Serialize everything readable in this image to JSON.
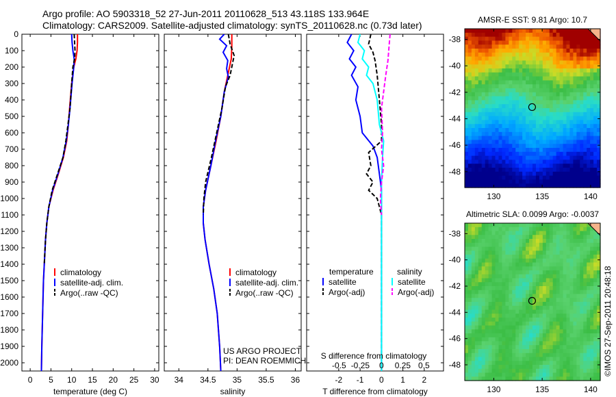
{
  "header": {
    "line1": "Argo profile: AO 5903318_52 27-Jun-2011 20110628_513 43.118S 133.964E",
    "line2": "Climatology: CARS2009. Satellite-adjusted climatology: synTS_20110628.nc (0.73d later)"
  },
  "depth_ticks": [
    0,
    100,
    200,
    300,
    400,
    500,
    600,
    700,
    800,
    900,
    1000,
    1100,
    1200,
    1300,
    1400,
    1500,
    1600,
    1700,
    1800,
    1900,
    2000
  ],
  "credits": {
    "project": "US ARGO PROJECT",
    "pi": "PI: DEAN ROEMMICH"
  },
  "timestamp": "©IMOS 27-Sep-2011 20:48:18",
  "colors": {
    "climatology": "#ff0000",
    "satellite": "#0000ff",
    "argo": "#000000",
    "sat_salinity": "#00ffff",
    "argo_salinity": "#ff00ff"
  },
  "chart_data": [
    {
      "type": "line",
      "xlabel": "temperature (deg C)",
      "ylabel": "",
      "xlim": [
        -2,
        31
      ],
      "ylim": [
        2050,
        0
      ],
      "xticks": [
        0,
        5,
        10,
        15,
        20,
        25,
        30
      ],
      "legend": {
        "position": "bottom-right",
        "entries": [
          "climatology",
          "satellite-adj. clim.",
          "Argo(..raw -QC)"
        ]
      },
      "series": [
        {
          "name": "climatology",
          "color": "#ff0000",
          "points": [
            [
              11.4,
              0
            ],
            [
              11.4,
              50
            ],
            [
              11.3,
              100
            ],
            [
              11.0,
              150
            ],
            [
              10.5,
              200
            ],
            [
              10.0,
              300
            ],
            [
              9.5,
              450
            ],
            [
              9.2,
              550
            ],
            [
              8.8,
              650
            ],
            [
              8.0,
              750
            ],
            [
              6.8,
              850
            ],
            [
              5.5,
              950
            ],
            [
              4.5,
              1050
            ],
            [
              4.0,
              1150
            ],
            [
              3.7,
              1250
            ],
            [
              3.4,
              1400
            ],
            [
              3.2,
              1500
            ],
            [
              3.0,
              1700
            ],
            [
              2.8,
              1900
            ],
            [
              2.7,
              2050
            ]
          ]
        },
        {
          "name": "satellite-adj. clim.",
          "color": "#0000ff",
          "points": [
            [
              10.0,
              0
            ],
            [
              10.1,
              50
            ],
            [
              10.3,
              100
            ],
            [
              10.6,
              150
            ],
            [
              10.5,
              200
            ],
            [
              10.1,
              300
            ],
            [
              9.6,
              450
            ],
            [
              9.2,
              550
            ],
            [
              8.7,
              650
            ],
            [
              7.9,
              750
            ],
            [
              6.7,
              850
            ],
            [
              5.4,
              950
            ],
            [
              4.5,
              1050
            ],
            [
              4.0,
              1150
            ],
            [
              3.7,
              1250
            ],
            [
              3.4,
              1400
            ],
            [
              3.2,
              1500
            ],
            [
              3.0,
              1700
            ],
            [
              2.8,
              1900
            ],
            [
              2.7,
              2050
            ]
          ]
        },
        {
          "name": "Argo(..raw -QC)",
          "color": "#000000",
          "points": [
            [
              10.6,
              0
            ],
            [
              10.7,
              50
            ],
            [
              10.8,
              100
            ],
            [
              10.7,
              150
            ],
            [
              10.3,
              200
            ],
            [
              10.0,
              300
            ],
            [
              9.6,
              450
            ],
            [
              9.1,
              550
            ],
            [
              8.6,
              650
            ],
            [
              7.9,
              750
            ],
            [
              6.6,
              850
            ],
            [
              5.3,
              950
            ],
            [
              4.5,
              1050
            ],
            [
              4.0,
              1150
            ],
            [
              3.7,
              1250
            ],
            [
              3.4,
              1400
            ]
          ]
        }
      ]
    },
    {
      "type": "line",
      "xlabel": "salinity",
      "ylabel": "",
      "xlim": [
        33.75,
        36.1
      ],
      "ylim": [
        2050,
        0
      ],
      "xticks": [
        34,
        34.5,
        35,
        35.5,
        36
      ],
      "legend": {
        "position": "bottom-right",
        "entries": [
          "climatology",
          "satellite-adj. clim.",
          "Argo(..raw -QC)"
        ]
      },
      "series": [
        {
          "name": "climatology",
          "color": "#ff0000",
          "points": [
            [
              34.91,
              0
            ],
            [
              34.91,
              80
            ],
            [
              34.9,
              150
            ],
            [
              34.84,
              250
            ],
            [
              34.78,
              350
            ],
            [
              34.72,
              500
            ],
            [
              34.64,
              650
            ],
            [
              34.55,
              800
            ],
            [
              34.46,
              950
            ],
            [
              34.42,
              1050
            ],
            [
              34.42,
              1150
            ],
            [
              34.45,
              1250
            ],
            [
              34.52,
              1400
            ],
            [
              34.6,
              1550
            ],
            [
              34.66,
              1700
            ],
            [
              34.7,
              1900
            ],
            [
              34.72,
              2050
            ]
          ]
        },
        {
          "name": "satellite-adj. clim.",
          "color": "#0000ff",
          "points": [
            [
              34.78,
              0
            ],
            [
              34.7,
              30
            ],
            [
              34.82,
              70
            ],
            [
              34.76,
              110
            ],
            [
              34.84,
              160
            ],
            [
              34.82,
              210
            ],
            [
              34.85,
              260
            ],
            [
              34.78,
              350
            ],
            [
              34.72,
              500
            ],
            [
              34.63,
              650
            ],
            [
              34.55,
              800
            ],
            [
              34.46,
              950
            ],
            [
              34.42,
              1050
            ],
            [
              34.42,
              1150
            ],
            [
              34.45,
              1250
            ],
            [
              34.52,
              1400
            ],
            [
              34.6,
              1550
            ],
            [
              34.66,
              1700
            ],
            [
              34.7,
              1900
            ],
            [
              34.72,
              2050
            ]
          ]
        },
        {
          "name": "Argo(..raw -QC)",
          "color": "#000000",
          "points": [
            [
              34.85,
              0
            ],
            [
              34.88,
              60
            ],
            [
              34.95,
              130
            ],
            [
              34.92,
              180
            ],
            [
              34.88,
              250
            ],
            [
              34.8,
              320
            ],
            [
              34.74,
              450
            ],
            [
              34.65,
              600
            ],
            [
              34.56,
              750
            ],
            [
              34.46,
              900
            ],
            [
              34.43,
              1000
            ],
            [
              34.42,
              1100
            ]
          ]
        }
      ]
    },
    {
      "type": "line",
      "xlabel": "T difference from climatology",
      "xlabel2": "S difference from climatology",
      "ylabel": "",
      "xlim": [
        -3.5,
        2.9
      ],
      "ylim": [
        2050,
        0
      ],
      "xticks": [
        -2,
        -1,
        0,
        1,
        2
      ],
      "x2ticks": [
        {
          "value": -0.5,
          "label": "-0.5"
        },
        {
          "value": -0.25,
          "label": "-0.25"
        },
        {
          "value": 0,
          "label": "0"
        },
        {
          "value": 0.25,
          "label": "0.25"
        },
        {
          "value": 0.5,
          "label": "0.5"
        }
      ],
      "legend": {
        "position": "bottom",
        "headers": [
          "temperature",
          "salinity"
        ],
        "entries": [
          "satellite",
          "Argo(-adj)",
          "satellite",
          "Argo(-adj)"
        ]
      },
      "series": [
        {
          "name": "satellite",
          "group": "temperature",
          "color": "#0000ff",
          "points": [
            [
              -1.4,
              0
            ],
            [
              -1.6,
              50
            ],
            [
              -1.3,
              100
            ],
            [
              -1.5,
              150
            ],
            [
              -1.2,
              200
            ],
            [
              -1.4,
              250
            ],
            [
              -1.1,
              320
            ],
            [
              -1.2,
              400
            ],
            [
              -1.0,
              500
            ],
            [
              -0.9,
              600
            ],
            [
              -0.4,
              680
            ],
            [
              -0.2,
              750
            ],
            [
              -0.1,
              850
            ],
            [
              0,
              950
            ],
            [
              0,
              2050
            ]
          ]
        },
        {
          "name": "Argo(-adj)",
          "group": "temperature",
          "color": "#000000",
          "points": [
            [
              -0.5,
              0
            ],
            [
              -0.6,
              60
            ],
            [
              -0.4,
              110
            ],
            [
              -0.3,
              160
            ],
            [
              -0.2,
              250
            ],
            [
              -0.1,
              400
            ],
            [
              0,
              550
            ],
            [
              0,
              650
            ],
            [
              -0.6,
              720
            ],
            [
              -0.5,
              800
            ],
            [
              -0.7,
              850
            ],
            [
              -0.4,
              900
            ],
            [
              -0.6,
              950
            ],
            [
              -0.2,
              1000
            ],
            [
              0,
              1100
            ],
            [
              0,
              2050
            ]
          ]
        },
        {
          "name": "satellite",
          "group": "salinity",
          "color": "#00ffff",
          "points": [
            [
              -1.0,
              0
            ],
            [
              -1.1,
              50
            ],
            [
              -0.8,
              100
            ],
            [
              -0.9,
              150
            ],
            [
              -0.6,
              200
            ],
            [
              -0.7,
              250
            ],
            [
              -0.4,
              300
            ],
            [
              -0.2,
              400
            ],
            [
              -0.1,
              550
            ],
            [
              0.1,
              650
            ],
            [
              0.05,
              750
            ],
            [
              0,
              900
            ],
            [
              0,
              2050
            ]
          ]
        },
        {
          "name": "Argo(-adj)",
          "group": "salinity",
          "color": "#ff00ff",
          "points": [
            [
              0.4,
              0
            ],
            [
              0.35,
              80
            ],
            [
              0.3,
              160
            ],
            [
              0.2,
              250
            ],
            [
              0.1,
              350
            ],
            [
              0,
              450
            ],
            [
              0.05,
              600
            ],
            [
              0,
              700
            ],
            [
              0.1,
              800
            ],
            [
              0,
              900
            ],
            [
              -0.05,
              1000
            ],
            [
              0,
              1100
            ]
          ]
        }
      ]
    },
    {
      "type": "heatmap",
      "title": "AMSR-E SST: 9.81 Argo: 10.7",
      "xlim": [
        127,
        141
      ],
      "ylim": [
        -49.2,
        -37.2
      ],
      "xticks": [
        130,
        135,
        140
      ],
      "yticks": [
        -38,
        -40,
        -42,
        -44,
        -46,
        -48
      ],
      "marker": {
        "lon": 133.96,
        "lat": -43.12
      }
    },
    {
      "type": "heatmap",
      "title": "Altimetric SLA: 0.0099 Argo: -0.0037",
      "xlim": [
        127,
        141
      ],
      "ylim": [
        -49.2,
        -37.2
      ],
      "xticks": [
        130,
        135,
        140
      ],
      "yticks": [
        -38,
        -40,
        -42,
        -44,
        -46,
        -48
      ],
      "marker": {
        "lon": 133.96,
        "lat": -43.12
      }
    }
  ]
}
